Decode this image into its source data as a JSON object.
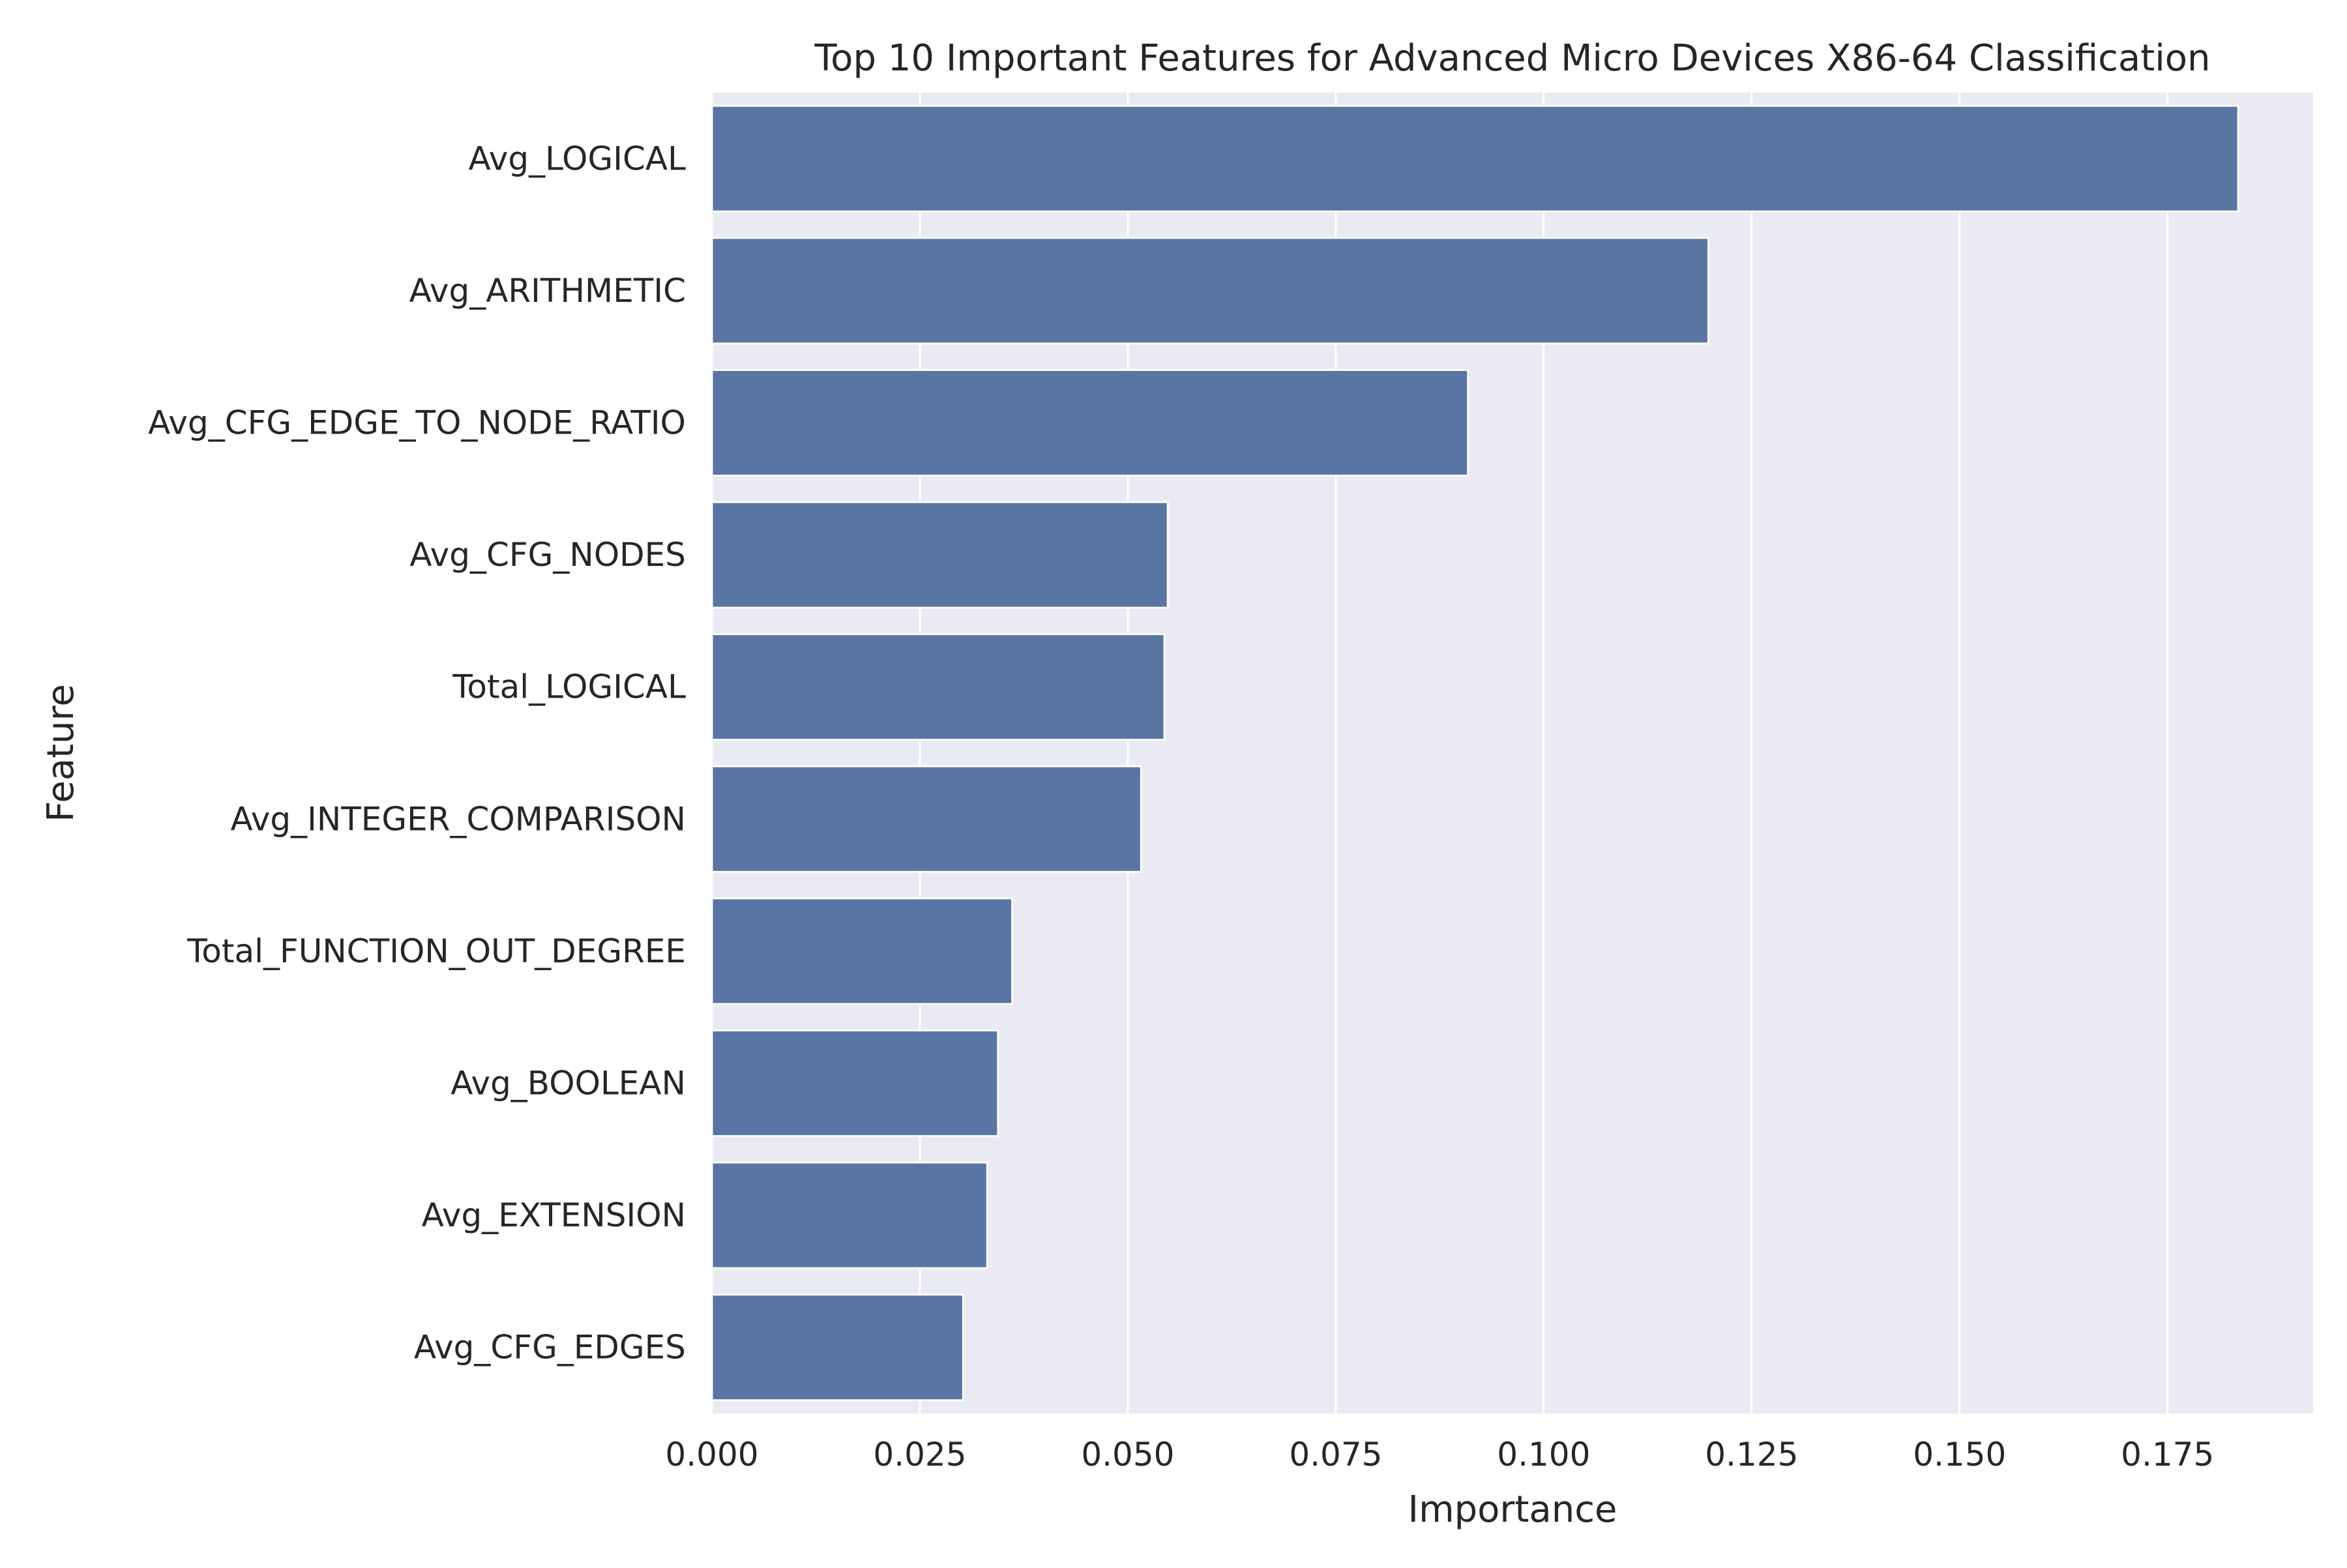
{
  "chart_data": {
    "type": "bar",
    "orientation": "horizontal",
    "title": "Top 10 Important Features for Advanced Micro Devices X86-64 Classification",
    "xlabel": "Importance",
    "ylabel": "Feature",
    "categories": [
      "Avg_LOGICAL",
      "Avg_ARITHMETIC",
      "Avg_CFG_EDGE_TO_NODE_RATIO",
      "Avg_CFG_NODES",
      "Total_LOGICAL",
      "Avg_INTEGER_COMPARISON",
      "Total_FUNCTION_OUT_DEGREE",
      "Avg_BOOLEAN",
      "Avg_EXTENSION",
      "Avg_CFG_EDGES"
    ],
    "values": [
      0.1835,
      0.1198,
      0.0909,
      0.0548,
      0.0544,
      0.0516,
      0.0361,
      0.0344,
      0.0331,
      0.0302
    ],
    "xlim": [
      0,
      0.1925
    ],
    "xticks": [
      0.0,
      0.025,
      0.05,
      0.075,
      0.1,
      0.125,
      0.15,
      0.175
    ],
    "xtick_labels": [
      "0.000",
      "0.025",
      "0.050",
      "0.075",
      "0.100",
      "0.125",
      "0.150",
      "0.175"
    ],
    "grid": true,
    "colors": {
      "bar": "#5975a4",
      "plot_background": "#eaeaf2",
      "grid": "#ffffff",
      "text": "#262626"
    }
  }
}
